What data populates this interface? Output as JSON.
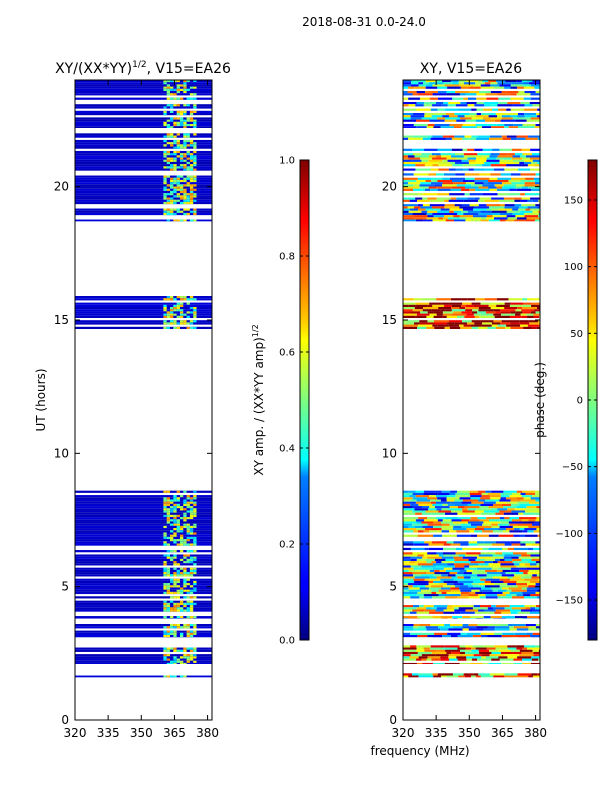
{
  "chart_data": {
    "suptitle": "2018-08-31 0.0-24.0",
    "common_xlabel": "frequency (MHz)",
    "panels": [
      {
        "type": "heatmap",
        "title_main": "XY/(XX*YY)",
        "title_sup": "1/2",
        "title_tail": ", V15=EA26",
        "ylabel": "UT (hours)",
        "xlim": [
          320,
          382
        ],
        "ylim": [
          0,
          24
        ],
        "xticks": [
          320,
          335,
          350,
          365,
          380
        ],
        "yticks": [
          0,
          5,
          10,
          15,
          20
        ],
        "colorbar": {
          "label_main": "XY amp. / (XX*YY amp)",
          "label_sup": "1/2",
          "range": [
            0.0,
            1.0
          ],
          "ticks": [
            "0.0",
            "0.2",
            "0.4",
            "0.6",
            "0.8",
            "1.0"
          ],
          "tick_values": [
            0.0,
            0.2,
            0.4,
            0.6,
            0.8,
            1.0
          ],
          "colormap": "jet"
        },
        "data_bands_ut_hours": [
          [
            1.6,
            1.75
          ],
          [
            2.1,
            2.8
          ],
          [
            3.1,
            3.6
          ],
          [
            3.8,
            8.6
          ],
          [
            14.6,
            15.9
          ],
          [
            18.7,
            20.5
          ],
          [
            20.6,
            22.0
          ],
          [
            22.2,
            24.0
          ]
        ],
        "background_level": 0.05,
        "bright_freq_range_mhz": [
          360,
          374
        ]
      },
      {
        "type": "heatmap",
        "title_main": "XY, V15=EA26",
        "xlim": [
          320,
          382
        ],
        "ylim": [
          0,
          24
        ],
        "xticks": [
          320,
          335,
          350,
          365,
          380
        ],
        "yticks": [
          0,
          5,
          10,
          15,
          20
        ],
        "colorbar": {
          "label_main": "phase (deg.)",
          "range": [
            -180,
            180
          ],
          "ticks": [
            "−150",
            "−100",
            "−50",
            "0",
            "50",
            "100",
            "150"
          ],
          "tick_values": [
            -150,
            -100,
            -50,
            0,
            50,
            100,
            150
          ],
          "colormap": "jet"
        },
        "data_bands_ut_hours": [
          [
            1.6,
            1.75
          ],
          [
            2.1,
            2.8
          ],
          [
            3.1,
            3.6
          ],
          [
            3.8,
            8.6
          ],
          [
            14.6,
            15.9
          ],
          [
            18.7,
            20.5
          ],
          [
            20.6,
            22.0
          ],
          [
            22.2,
            24.0
          ]
        ]
      }
    ]
  }
}
